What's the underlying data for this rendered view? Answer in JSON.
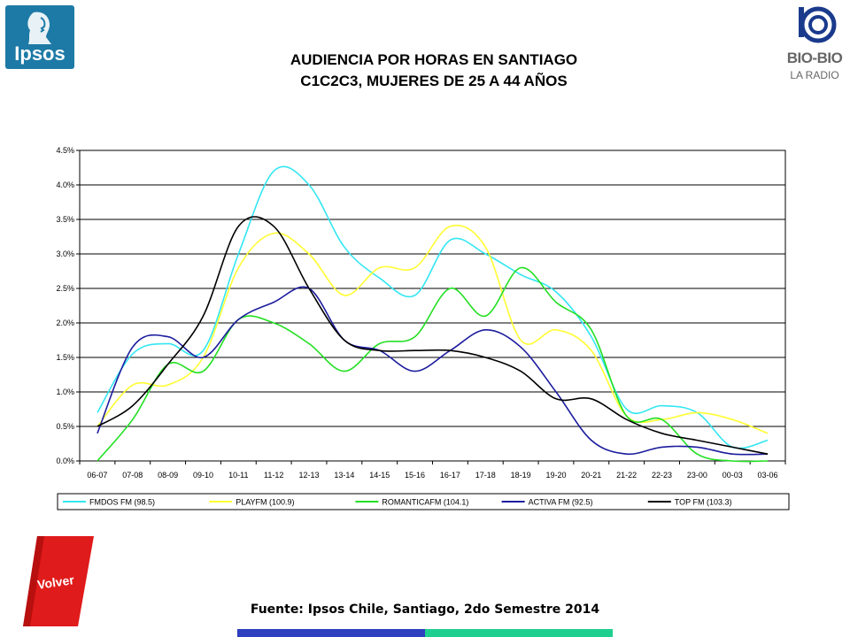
{
  "header": {
    "title_line1": "AUDIENCIA POR HORAS EN SANTIAGO",
    "title_line2": "C1C2C3, MUJERES DE 25 A 44 AÑOS"
  },
  "logos": {
    "left_brand": "Ipsos",
    "right_brand": "BIO-BIO",
    "right_sub": "LA RADIO"
  },
  "navigation": {
    "back_label": "Volver"
  },
  "footer": {
    "source": "Fuente: Ipsos Chile, Santiago, 2do Semestre 2014"
  },
  "colors": {
    "ipsos_blue": "#1d7aa6",
    "bar_blue": "#2e3fbf",
    "bar_green": "#1fcf8f",
    "volver_red": "#e01b1b"
  },
  "chart_data": {
    "type": "line",
    "categories": [
      "06-07",
      "07-08",
      "08-09",
      "09-10",
      "10-11",
      "11-12",
      "12-13",
      "13-14",
      "14-15",
      "15-16",
      "16-17",
      "17-18",
      "18-19",
      "19-20",
      "20-21",
      "21-22",
      "22-23",
      "23-00",
      "00-03",
      "03-06"
    ],
    "y_ticks": [
      "0.0%",
      "0.5%",
      "1.0%",
      "1.5%",
      "2.0%",
      "2.5%",
      "3.0%",
      "3.5%",
      "4.0%",
      "4.5%"
    ],
    "ylim": [
      0,
      4.5
    ],
    "grid": true,
    "legend_position": "bottom",
    "series": [
      {
        "name": "FMDOS FM (98.5)",
        "color": "#33e6f2",
        "values": [
          0.7,
          1.55,
          1.7,
          1.6,
          3.0,
          4.2,
          4.0,
          3.1,
          2.65,
          2.4,
          3.2,
          3.0,
          2.7,
          2.45,
          1.8,
          0.75,
          0.8,
          0.7,
          0.2,
          0.3
        ]
      },
      {
        "name": "PLAYFM (100.9)",
        "color": "#ffff33",
        "values": [
          0.5,
          1.1,
          1.1,
          1.5,
          2.8,
          3.3,
          3.0,
          2.4,
          2.8,
          2.8,
          3.4,
          3.1,
          1.75,
          1.9,
          1.6,
          0.65,
          0.6,
          0.7,
          0.6,
          0.4
        ]
      },
      {
        "name": "ROMANTICAFM (104.1)",
        "color": "#22e022",
        "values": [
          0.0,
          0.6,
          1.4,
          1.3,
          2.05,
          2.0,
          1.7,
          1.3,
          1.7,
          1.8,
          2.5,
          2.1,
          2.8,
          2.3,
          1.9,
          0.65,
          0.6,
          0.1,
          0.0,
          0.0
        ]
      },
      {
        "name": "ACTIVA FM (92.5)",
        "color": "#1c1c9e",
        "values": [
          0.4,
          1.65,
          1.8,
          1.5,
          2.05,
          2.3,
          2.5,
          1.75,
          1.6,
          1.3,
          1.6,
          1.9,
          1.65,
          1.0,
          0.3,
          0.1,
          0.2,
          0.2,
          0.1,
          0.1
        ]
      },
      {
        "name": "TOP FM (103.3)",
        "color": "#000000",
        "values": [
          0.5,
          0.8,
          1.4,
          2.1,
          3.4,
          3.4,
          2.5,
          1.75,
          1.6,
          1.6,
          1.6,
          1.5,
          1.3,
          0.9,
          0.9,
          0.6,
          0.4,
          0.3,
          0.2,
          0.1
        ]
      }
    ]
  }
}
